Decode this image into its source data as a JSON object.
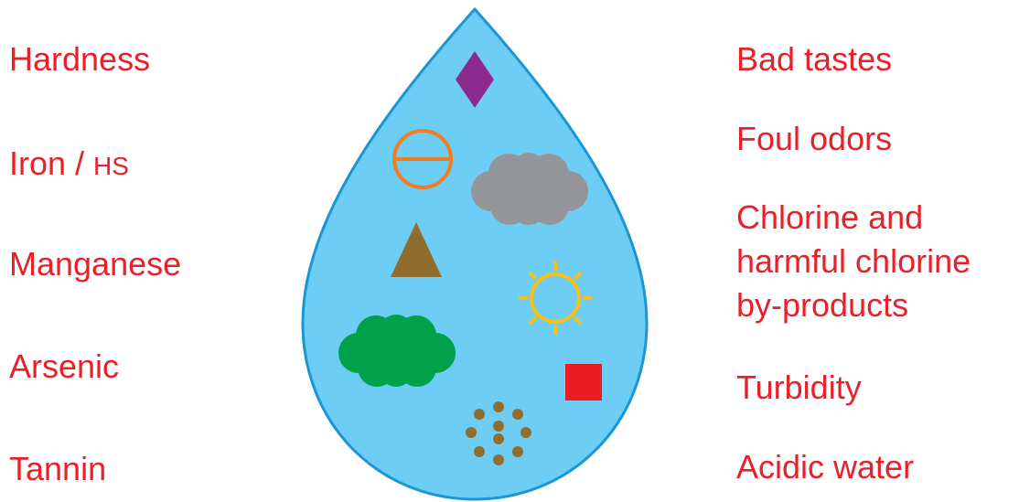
{
  "colors": {
    "label": "#e8202a",
    "drop_fill": "#6dcdf4",
    "drop_stroke": "#1a96d4",
    "diamond": "#8b2a8c",
    "circle_symbol": "#ef7d22",
    "gray_cloud": "#949599",
    "triangle": "#8e6d2f",
    "sun": "#f7c012",
    "green_cloud": "#00a14b",
    "square": "#ec1c24",
    "dots": "#8e6d2f"
  },
  "icons": [
    "diamond-icon",
    "circle-bar-icon",
    "gray-cloud-icon",
    "triangle-icon",
    "sun-icon",
    "green-cloud-icon",
    "red-square-icon",
    "dot-ring-icon"
  ],
  "left_labels": {
    "hardness": "Hardness",
    "iron_prefix": "Iron / ",
    "iron_suffix": "HS",
    "manganese": "Manganese",
    "arsenic": "Arsenic",
    "tannin": "Tannin"
  },
  "right_labels": {
    "bad_tastes": "Bad tastes",
    "foul_odors": "Foul odors",
    "chlorine_line1": "Chlorine and",
    "chlorine_line2": "harmful chlorine",
    "chlorine_line3": "by-products",
    "turbidity": "Turbidity",
    "acidic_water": "Acidic water"
  }
}
